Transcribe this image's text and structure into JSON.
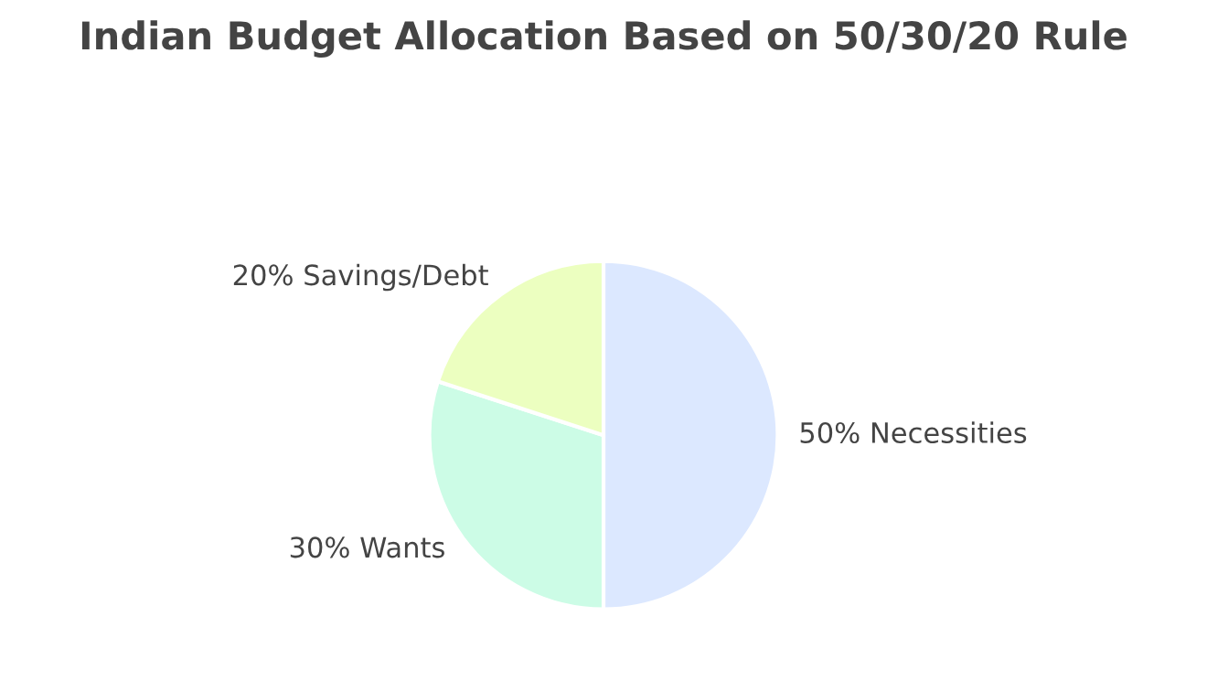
{
  "chart_data": {
    "type": "pie",
    "title": "Indian Budget Allocation Based on 50/30/20 Rule",
    "categories": [
      "50% Necessities",
      "30% Wants",
      "20% Savings/Debt"
    ],
    "values": [
      50,
      30,
      20
    ],
    "colors": [
      "#dce8ff",
      "#ccfce6",
      "#ecffc0"
    ]
  }
}
